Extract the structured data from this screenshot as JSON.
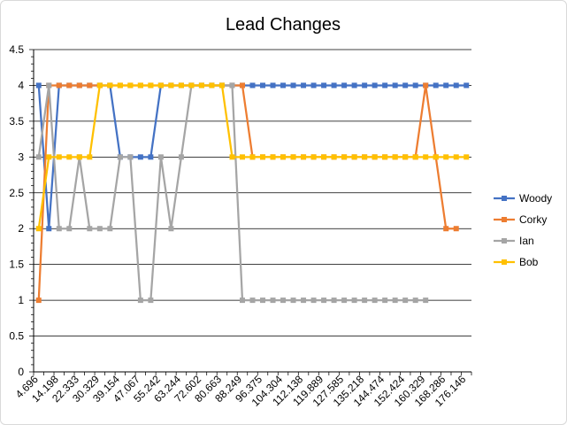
{
  "chart_data": {
    "type": "line",
    "title": "Lead Changes",
    "xlabel": "",
    "ylabel": "",
    "ylim": [
      0,
      4.5
    ],
    "y_ticks": [
      "0",
      "0.5",
      "1",
      "1.5",
      "2",
      "2.5",
      "3",
      "3.5",
      "4",
      "4.5"
    ],
    "grid": "horizontal",
    "legend_position": "right",
    "x_tick_labels": [
      "4.696",
      "14.198",
      "22.333",
      "30.329",
      "39.154",
      "47.067",
      "55.242",
      "63.244",
      "72.602",
      "80.663",
      "88.249",
      "96.375",
      "104.304",
      "112.138",
      "119.889",
      "127.585",
      "135.218",
      "144.474",
      "152.424",
      "160.329",
      "168.286",
      "176.146"
    ],
    "point_count": 43,
    "series": [
      {
        "name": "Woody",
        "color": "#4472c4",
        "values": [
          4,
          2,
          4,
          4,
          4,
          4,
          4,
          4,
          3,
          3,
          3,
          3,
          4,
          4,
          4,
          4,
          4,
          4,
          4,
          4,
          4,
          4,
          4,
          4,
          4,
          4,
          4,
          4,
          4,
          4,
          4,
          4,
          4,
          4,
          4,
          4,
          4,
          4,
          4,
          4,
          4,
          4,
          4
        ]
      },
      {
        "name": "Corky",
        "color": "#ed7d31",
        "values": [
          1,
          4,
          4,
          4,
          4,
          4,
          4,
          4,
          4,
          4,
          4,
          4,
          4,
          4,
          4,
          4,
          4,
          4,
          4,
          4,
          4,
          3,
          3,
          3,
          3,
          3,
          3,
          3,
          3,
          3,
          3,
          3,
          3,
          3,
          3,
          3,
          3,
          3,
          4,
          3,
          2,
          2,
          null
        ]
      },
      {
        "name": "Ian",
        "color": "#a5a5a5",
        "values": [
          3,
          4,
          2,
          2,
          3,
          2,
          2,
          2,
          3,
          3,
          1,
          1,
          3,
          2,
          3,
          4,
          4,
          4,
          4,
          4,
          1,
          1,
          1,
          1,
          1,
          1,
          1,
          1,
          1,
          1,
          1,
          1,
          1,
          1,
          1,
          1,
          1,
          1,
          1,
          null,
          null,
          null,
          null
        ]
      },
      {
        "name": "Bob",
        "color": "#ffc000",
        "values": [
          2,
          3,
          3,
          3,
          3,
          3,
          4,
          4,
          4,
          4,
          4,
          4,
          4,
          4,
          4,
          4,
          4,
          4,
          4,
          3,
          3,
          3,
          3,
          3,
          3,
          3,
          3,
          3,
          3,
          3,
          3,
          3,
          3,
          3,
          3,
          3,
          3,
          3,
          3,
          3,
          3,
          3,
          3
        ]
      }
    ]
  }
}
